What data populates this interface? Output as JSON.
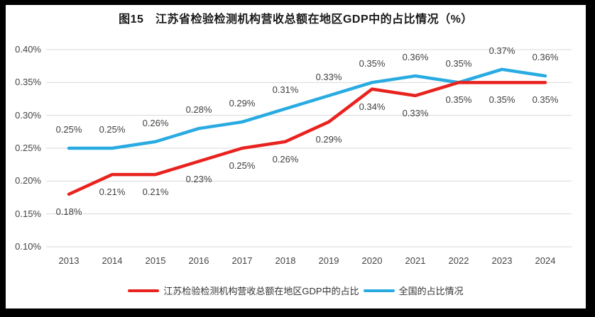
{
  "title": "图15　江苏省检验检测机构营收总额在地区GDP中的占比情况（%）",
  "colors": {
    "jiangsu": "#e8231f",
    "national": "#29abe2",
    "gridline": "#d9d9d9",
    "tick_text": "#444444",
    "label_text": "#3f3f3f",
    "frame_border": "#000000",
    "background": "#ffffff"
  },
  "chart_data": {
    "type": "line",
    "title": "图15　江苏省检验检测机构营收总额在地区GDP中的占比情况（%）",
    "categories": [
      "2013",
      "2014",
      "2015",
      "2016",
      "2017",
      "2018",
      "2019",
      "2020",
      "2021",
      "2022",
      "2023",
      "2024"
    ],
    "series": [
      {
        "name": "江苏检验检测机构营收总额在地区GDP中的占比",
        "color_key": "jiangsu",
        "values": [
          0.18,
          0.21,
          0.21,
          0.23,
          0.25,
          0.26,
          0.29,
          0.34,
          0.33,
          0.35,
          0.35,
          0.35
        ],
        "point_labels": [
          "0.18%",
          "0.21%",
          "0.21%",
          "0.23%",
          "0.25%",
          "0.26%",
          "0.29%",
          "0.34%",
          "0.33%",
          "0.35%",
          "0.35%",
          "0.35%"
        ],
        "label_position": "below"
      },
      {
        "name": "全国的占比情况",
        "color_key": "national",
        "values": [
          0.25,
          0.25,
          0.26,
          0.28,
          0.29,
          0.31,
          0.33,
          0.35,
          0.36,
          0.35,
          0.37,
          0.36
        ],
        "point_labels": [
          "0.25%",
          "0.25%",
          "0.26%",
          "0.28%",
          "0.29%",
          "0.31%",
          "0.33%",
          "0.35%",
          "0.36%",
          "0.35%",
          "0.37%",
          "0.36%"
        ],
        "label_position": "above"
      }
    ],
    "xlabel": "",
    "ylabel": "",
    "ylim": [
      0.1,
      0.4
    ],
    "yticks": [
      {
        "value": 0.1,
        "label": "0.10%"
      },
      {
        "value": 0.15,
        "label": "0.15%"
      },
      {
        "value": 0.2,
        "label": "0.20%"
      },
      {
        "value": 0.25,
        "label": "0.25%"
      },
      {
        "value": 0.3,
        "label": "0.30%"
      },
      {
        "value": 0.35,
        "label": "0.35%"
      },
      {
        "value": 0.4,
        "label": "0.40%"
      }
    ],
    "grid": true,
    "legend_position": "bottom"
  },
  "legend": {
    "items": [
      {
        "label": "江苏检验检测机构营收总额在地区GDP中的占比",
        "color_key": "jiangsu"
      },
      {
        "label": "全国的占比情况",
        "color_key": "national"
      }
    ]
  }
}
